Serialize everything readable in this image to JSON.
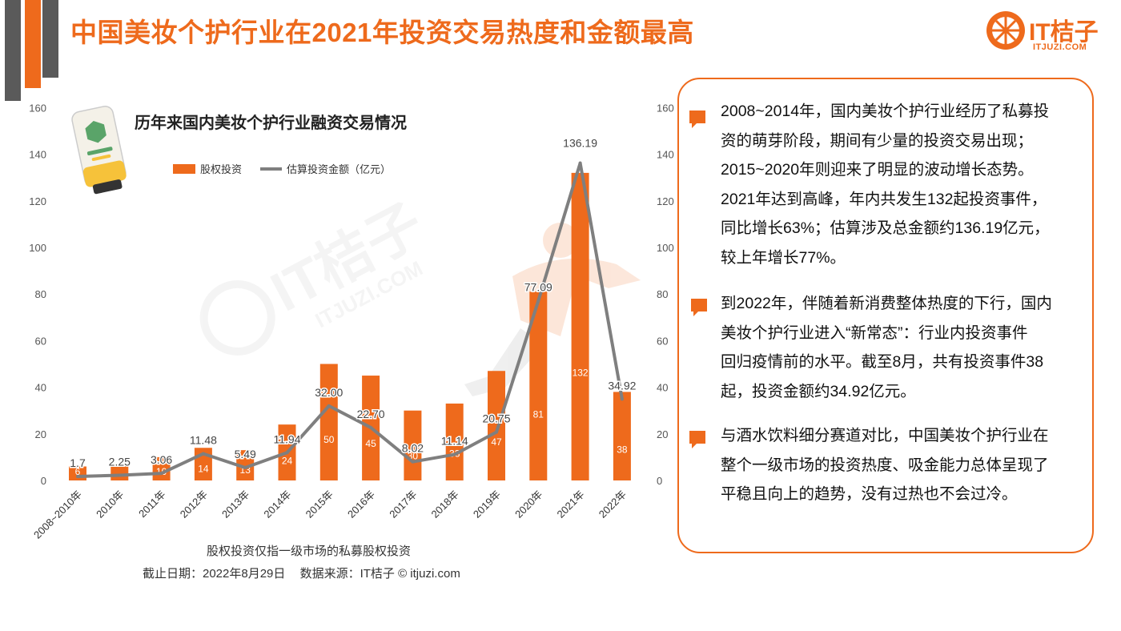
{
  "page_title": "中国美妆个护行业在2021年投资交易热度和金额最高",
  "logo": {
    "text": "IT桔子",
    "url": "ITJUZI.COM"
  },
  "watermark": {
    "text": "IT桔子",
    "url": "ITJUZI.COM"
  },
  "chart_data": {
    "type": "bar+line",
    "title": "历年来国内美妆个护行业融资交易情况",
    "categories": [
      "2008~2010年",
      "2010年",
      "2011年",
      "2012年",
      "2013年",
      "2014年",
      "2015年",
      "2016年",
      "2017年",
      "2018年",
      "2019年",
      "2020年",
      "2021年",
      "2022年"
    ],
    "series": [
      {
        "name": "股权投资",
        "type": "bar",
        "axis": "left",
        "color": "#ee6a1c",
        "values": [
          6,
          7,
          10,
          14,
          13,
          24,
          50,
          45,
          30,
          33,
          47,
          81,
          132,
          38
        ],
        "labels": [
          "6",
          "",
          "10",
          "14",
          "13",
          "24",
          "50",
          "45",
          "30",
          "33",
          "47",
          "81",
          "132",
          "38"
        ]
      },
      {
        "name": "估算投资金额（亿元）",
        "type": "line",
        "axis": "right",
        "color": "#7f7f7f",
        "values": [
          1.7,
          2.25,
          3.06,
          11.48,
          5.49,
          11.94,
          32.0,
          22.7,
          8.02,
          11.14,
          20.75,
          77.09,
          136.19,
          34.92
        ],
        "labels": [
          "1.7",
          "2.25",
          "3.06",
          "11.48",
          "5.49",
          "11.94",
          "32.00",
          "22.70",
          "8.02",
          "11.14",
          "20.75",
          "77.09",
          "136.19",
          "34.92"
        ]
      }
    ],
    "ylim": [
      0,
      160
    ],
    "y2lim": [
      0,
      160
    ],
    "y_ticks": [
      "0",
      "20",
      "40",
      "60",
      "80",
      "100",
      "120",
      "140",
      "160"
    ],
    "legend_position": "top",
    "grid": false
  },
  "footnote": "股权投资仅指一级市场的私募股权投资",
  "source": {
    "date": "截止日期：2022年8月29日",
    "origin": "数据来源：IT桔子 © itjuzi.com"
  },
  "panel": {
    "paragraphs": [
      [
        "2008~2014年，国内美妆个护行业经历了私募投",
        "资的萌芽阶段，期间有少量的投资交易出现；",
        "2015~2020年则迎来了明显的波动增长态势。",
        "2021年达到高峰，年内共发生132起投资事件，",
        "同比增长63%；估算涉及总金额约136.19亿元，",
        "较上年增长77%。"
      ],
      [
        "到2022年，伴随着新消费整体热度的下行，国内",
        "美妆个护行业进入“新常态”：行业内投资事件",
        "回归疫情前的水平。截至8月，共有投资事件38",
        "起，投资金额约34.92亿元。"
      ],
      [
        "与酒水饮料细分赛道对比，中国美妆个护行业在",
        "整个一级市场的投资热度、吸金能力总体呈现了",
        "平稳且向上的趋势，没有过热也不会过冷。"
      ]
    ]
  },
  "colors": {
    "accent": "#ee6a1c",
    "line": "#7f7f7f",
    "dark": "#5a5a5a"
  }
}
